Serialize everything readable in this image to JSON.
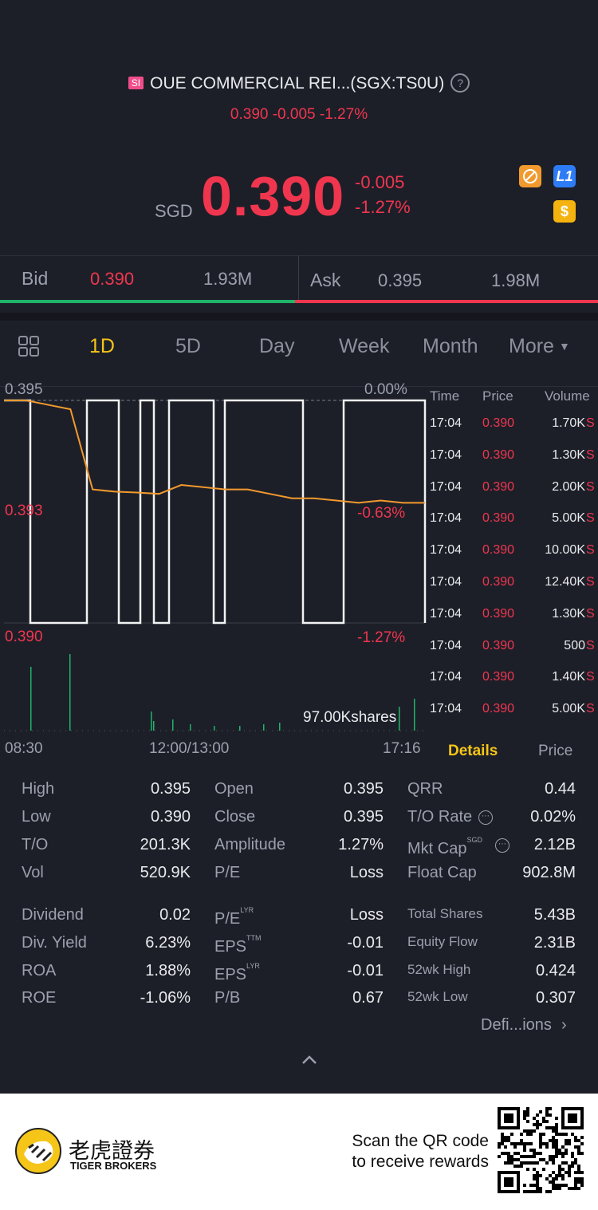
{
  "header": {
    "badge": "SI",
    "title": "OUE COMMERCIAL REI...(SGX:TS0U)",
    "help": "?",
    "subline": "0.390 -0.005 -1.27%"
  },
  "quote": {
    "currency": "SGD",
    "price": "0.390",
    "change": "-0.005",
    "change_pct": "-1.27%",
    "icon_l1": "L1",
    "icon_dollar": "$"
  },
  "bidask": {
    "bid_label": "Bid",
    "bid_price": "0.390",
    "bid_size": "1.93M",
    "ask_label": "Ask",
    "ask_price": "0.395",
    "ask_size": "1.98M"
  },
  "tabs": [
    "1D",
    "5D",
    "Day",
    "Week",
    "Month",
    "More"
  ],
  "active_tab": "1D",
  "chart": {
    "y_top": "0.395",
    "y_mid": "0.393",
    "y_bot": "0.390",
    "pct_top": "0.00%",
    "pct_mid": "-0.63%",
    "pct_bot": "-1.27%",
    "volume_label": "97.00Kshares",
    "x_start": "08:30",
    "x_mid": "12:00/13:00",
    "x_end": "17:16"
  },
  "chart_data": {
    "type": "line",
    "series": [
      {
        "values": [
          0.395,
          0.395,
          0.3949,
          0.3948,
          0.393,
          0.39295,
          0.39293,
          0.3929,
          0.3931,
          0.39305,
          0.393,
          0.393,
          0.3929,
          0.3928,
          0.3928,
          0.39275,
          0.3927,
          0.39275,
          0.3927,
          0.3927
        ]
      },
      {
        "values": [
          0.395,
          0.39,
          0.395,
          0.39,
          0.395,
          0.39,
          0.395,
          0.39,
          0.395,
          0.39,
          0.395,
          0.39
        ]
      }
    ],
    "ylim": [
      0.39,
      0.395
    ],
    "grid": true
  },
  "ticks": {
    "headers": [
      "Time",
      "Price",
      "Volume"
    ],
    "rows": [
      {
        "time": "17:04",
        "price": "0.390",
        "volume": "1.70K",
        "side": "S"
      },
      {
        "time": "17:04",
        "price": "0.390",
        "volume": "1.30K",
        "side": "S"
      },
      {
        "time": "17:04",
        "price": "0.390",
        "volume": "2.00K",
        "side": "S"
      },
      {
        "time": "17:04",
        "price": "0.390",
        "volume": "5.00K",
        "side": "S"
      },
      {
        "time": "17:04",
        "price": "0.390",
        "volume": "10.00K",
        "side": "S"
      },
      {
        "time": "17:04",
        "price": "0.390",
        "volume": "12.40K",
        "side": "S"
      },
      {
        "time": "17:04",
        "price": "0.390",
        "volume": "1.30K",
        "side": "S"
      },
      {
        "time": "17:04",
        "price": "0.390",
        "volume": "500",
        "side": "S"
      },
      {
        "time": "17:04",
        "price": "0.390",
        "volume": "1.40K",
        "side": "S"
      },
      {
        "time": "17:04",
        "price": "0.390",
        "volume": "5.00K",
        "side": "S"
      }
    ],
    "tab_details": "Details",
    "tab_price": "Price"
  },
  "details": {
    "col1": [
      {
        "label": "High",
        "value": "0.395"
      },
      {
        "label": "Low",
        "value": "0.390"
      },
      {
        "label": "T/O",
        "value": "201.3K"
      },
      {
        "label": "Vol",
        "value": "520.9K"
      },
      {
        "label": "Dividend",
        "value": "0.02"
      },
      {
        "label": "Div. Yield",
        "value": "6.23%"
      },
      {
        "label": "ROA",
        "value": "1.88%"
      },
      {
        "label": "ROE",
        "value": "-1.06%"
      }
    ],
    "col2": [
      {
        "label": "Open",
        "value": "0.395",
        "sup": ""
      },
      {
        "label": "Close",
        "value": "0.395",
        "sup": ""
      },
      {
        "label": "Amplitude",
        "value": "1.27%",
        "sup": ""
      },
      {
        "label": "P/E",
        "value": "Loss",
        "sup": ""
      },
      {
        "label": "P/E",
        "value": "Loss",
        "sup": "LYR"
      },
      {
        "label": "EPS",
        "value": "-0.01",
        "sup": "TTM"
      },
      {
        "label": "EPS",
        "value": "-0.01",
        "sup": "LYR"
      },
      {
        "label": "P/B",
        "value": "0.67",
        "sup": ""
      }
    ],
    "col3": [
      {
        "label": "QRR",
        "value": "0.44",
        "sup": ""
      },
      {
        "label": "T/O Rate",
        "value": "0.02%",
        "sup": ""
      },
      {
        "label": "Mkt Cap",
        "value": "2.12B",
        "sup": "SGD"
      },
      {
        "label": "Float Cap",
        "value": "902.8M",
        "sup": ""
      },
      {
        "label": "Total Shares",
        "value": "5.43B",
        "sup": ""
      },
      {
        "label": "Equity Flow",
        "value": "2.31B",
        "sup": ""
      },
      {
        "label": "52wk High",
        "value": "0.424",
        "sup": ""
      },
      {
        "label": "52wk Low",
        "value": "0.307",
        "sup": ""
      }
    ],
    "definitions": "Defi...ions"
  },
  "footer": {
    "brand_cn": "老虎證券",
    "brand_en": "TIGER BROKERS",
    "scan_line1": "Scan the QR code",
    "scan_line2": "to receive rewards"
  },
  "colors": {
    "background": "#1d1f28",
    "red": "#f0364f",
    "green": "#1fb46a",
    "orange": "#f29a2e",
    "accent": "#f5c518"
  }
}
